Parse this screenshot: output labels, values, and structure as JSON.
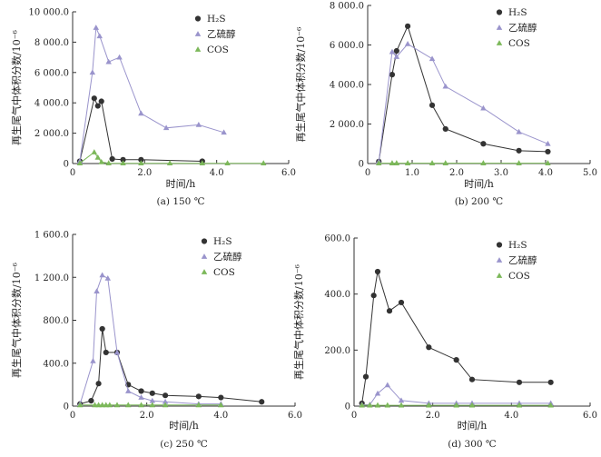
{
  "chart_data": [
    {
      "type": "line",
      "caption": "(a) 150 ℃",
      "xlabel": "时间/h",
      "ylabel": "再生尾气中体积分数/10⁻⁶",
      "xlim": [
        0,
        6
      ],
      "ylim": [
        0,
        10000
      ],
      "xticks": [
        "0",
        "2.0",
        "4.0",
        "6.0"
      ],
      "yticks": [
        "0",
        "2 000.0",
        "4 000.0",
        "6 000.0",
        "8 000.0",
        "10 000.0"
      ],
      "grid": false,
      "legend_position": "top-right",
      "series": [
        {
          "name": "H₂S",
          "color": "#333333",
          "marker": "circle",
          "x": [
            0.2,
            0.6,
            0.7,
            0.8,
            1.1,
            1.4,
            1.9,
            3.6
          ],
          "y": [
            150,
            4300,
            3800,
            4100,
            300,
            250,
            250,
            150
          ]
        },
        {
          "name": "乙硫醇",
          "color": "#9a94cc",
          "marker": "triangle",
          "x": [
            0.2,
            0.55,
            0.65,
            0.75,
            1.0,
            1.3,
            1.9,
            2.6,
            3.5,
            4.2
          ],
          "y": [
            150,
            6000,
            8950,
            8400,
            6700,
            7000,
            3300,
            2350,
            2550,
            2050
          ]
        },
        {
          "name": "COS",
          "color": "#7cb85a",
          "marker": "triangle",
          "x": [
            0.2,
            0.6,
            0.7,
            0.8,
            1.0,
            1.4,
            1.9,
            2.7,
            3.6,
            4.3,
            5.3
          ],
          "y": [
            20,
            750,
            400,
            100,
            20,
            20,
            20,
            20,
            20,
            20,
            20
          ]
        }
      ]
    },
    {
      "type": "line",
      "caption": "(b) 200 ℃",
      "xlabel": "时间/h",
      "ylabel": "再生尾气中体积分数/10⁻⁶",
      "xlim": [
        0,
        5
      ],
      "ylim": [
        0,
        8000
      ],
      "xticks": [
        "0",
        "1.0",
        "2.0",
        "3.0",
        "4.0",
        "5.0"
      ],
      "yticks": [
        "0",
        "2 000.0",
        "4 000.0",
        "6 000.0",
        "8 000.0"
      ],
      "grid": false,
      "legend_position": "top-right",
      "series": [
        {
          "name": "H₂S",
          "color": "#333333",
          "marker": "circle",
          "x": [
            0.25,
            0.55,
            0.65,
            0.9,
            1.45,
            1.75,
            2.6,
            3.4,
            4.05
          ],
          "y": [
            100,
            4500,
            5700,
            6950,
            2950,
            1750,
            1000,
            650,
            600
          ]
        },
        {
          "name": "乙硫醇",
          "color": "#9a94cc",
          "marker": "triangle",
          "x": [
            0.25,
            0.55,
            0.65,
            0.9,
            1.45,
            1.75,
            2.6,
            3.4,
            4.05
          ],
          "y": [
            100,
            5650,
            5400,
            6050,
            5300,
            3900,
            2800,
            1600,
            1000
          ]
        },
        {
          "name": "COS",
          "color": "#7cb85a",
          "marker": "triangle",
          "x": [
            0.25,
            0.55,
            0.65,
            0.9,
            1.45,
            1.75,
            2.6,
            3.4,
            4.05
          ],
          "y": [
            20,
            20,
            20,
            20,
            20,
            20,
            20,
            20,
            20
          ]
        }
      ]
    },
    {
      "type": "line",
      "caption": "(c) 250 ℃",
      "xlabel": "时间/h",
      "ylabel": "再生尾气中体积分数/10⁻⁶",
      "xlim": [
        0,
        6
      ],
      "ylim": [
        0,
        1600
      ],
      "xticks": [
        "0",
        "2.0",
        "4.0",
        "6.0"
      ],
      "yticks": [
        "0",
        "400.0",
        "800.0",
        "1 200.0",
        "1 600.0"
      ],
      "grid": false,
      "legend_position": "top-right",
      "series": [
        {
          "name": "H₂S",
          "color": "#333333",
          "marker": "circle",
          "x": [
            0.2,
            0.5,
            0.7,
            0.8,
            0.9,
            1.2,
            1.5,
            1.85,
            2.15,
            2.5,
            3.4,
            4.0,
            5.1
          ],
          "y": [
            20,
            50,
            210,
            720,
            500,
            500,
            200,
            140,
            120,
            100,
            90,
            80,
            40
          ]
        },
        {
          "name": "乙硫醇",
          "color": "#9a94cc",
          "marker": "triangle",
          "x": [
            0.2,
            0.55,
            0.65,
            0.8,
            0.95,
            1.2,
            1.5,
            1.85,
            2.15,
            2.5,
            3.4,
            4.0
          ],
          "y": [
            20,
            420,
            1070,
            1220,
            1190,
            500,
            140,
            80,
            50,
            40,
            20,
            20
          ]
        },
        {
          "name": "COS",
          "color": "#7cb85a",
          "marker": "triangle",
          "x": [
            0.2,
            0.6,
            0.7,
            0.8,
            0.9,
            1.0,
            1.2,
            1.5,
            1.85,
            2.15,
            2.5,
            3.4,
            4.0
          ],
          "y": [
            10,
            10,
            10,
            10,
            10,
            10,
            10,
            10,
            10,
            10,
            10,
            10,
            10
          ]
        }
      ]
    },
    {
      "type": "line",
      "caption": "(d) 300 ℃",
      "xlabel": "时间/h",
      "ylabel": "再生尾气中体积分数/10⁻⁶",
      "xlim": [
        0,
        6
      ],
      "ylim": [
        0,
        600
      ],
      "xticks": [
        "0",
        "2.0",
        "4.0",
        "6.0"
      ],
      "yticks": [
        "0",
        "200.0",
        "400.0",
        "600.0"
      ],
      "grid": false,
      "legend_position": "top-right",
      "series": [
        {
          "name": "H₂S",
          "color": "#333333",
          "marker": "circle",
          "x": [
            0.2,
            0.3,
            0.5,
            0.6,
            0.9,
            1.2,
            1.9,
            2.6,
            3.0,
            4.2,
            5.0
          ],
          "y": [
            10,
            105,
            395,
            480,
            340,
            370,
            210,
            165,
            95,
            85,
            85
          ]
        },
        {
          "name": "乙硫醇",
          "color": "#9a94cc",
          "marker": "triangle",
          "x": [
            0.2,
            0.4,
            0.6,
            0.85,
            1.2,
            1.9,
            2.6,
            3.0,
            4.2,
            5.0
          ],
          "y": [
            5,
            5,
            45,
            75,
            20,
            10,
            10,
            10,
            10,
            10
          ]
        },
        {
          "name": "COS",
          "color": "#7cb85a",
          "marker": "triangle",
          "x": [
            0.2,
            0.4,
            0.6,
            0.85,
            1.2,
            1.9,
            2.6,
            3.0,
            4.2,
            5.0
          ],
          "y": [
            3,
            3,
            3,
            3,
            3,
            3,
            3,
            3,
            3,
            3
          ]
        }
      ]
    }
  ]
}
